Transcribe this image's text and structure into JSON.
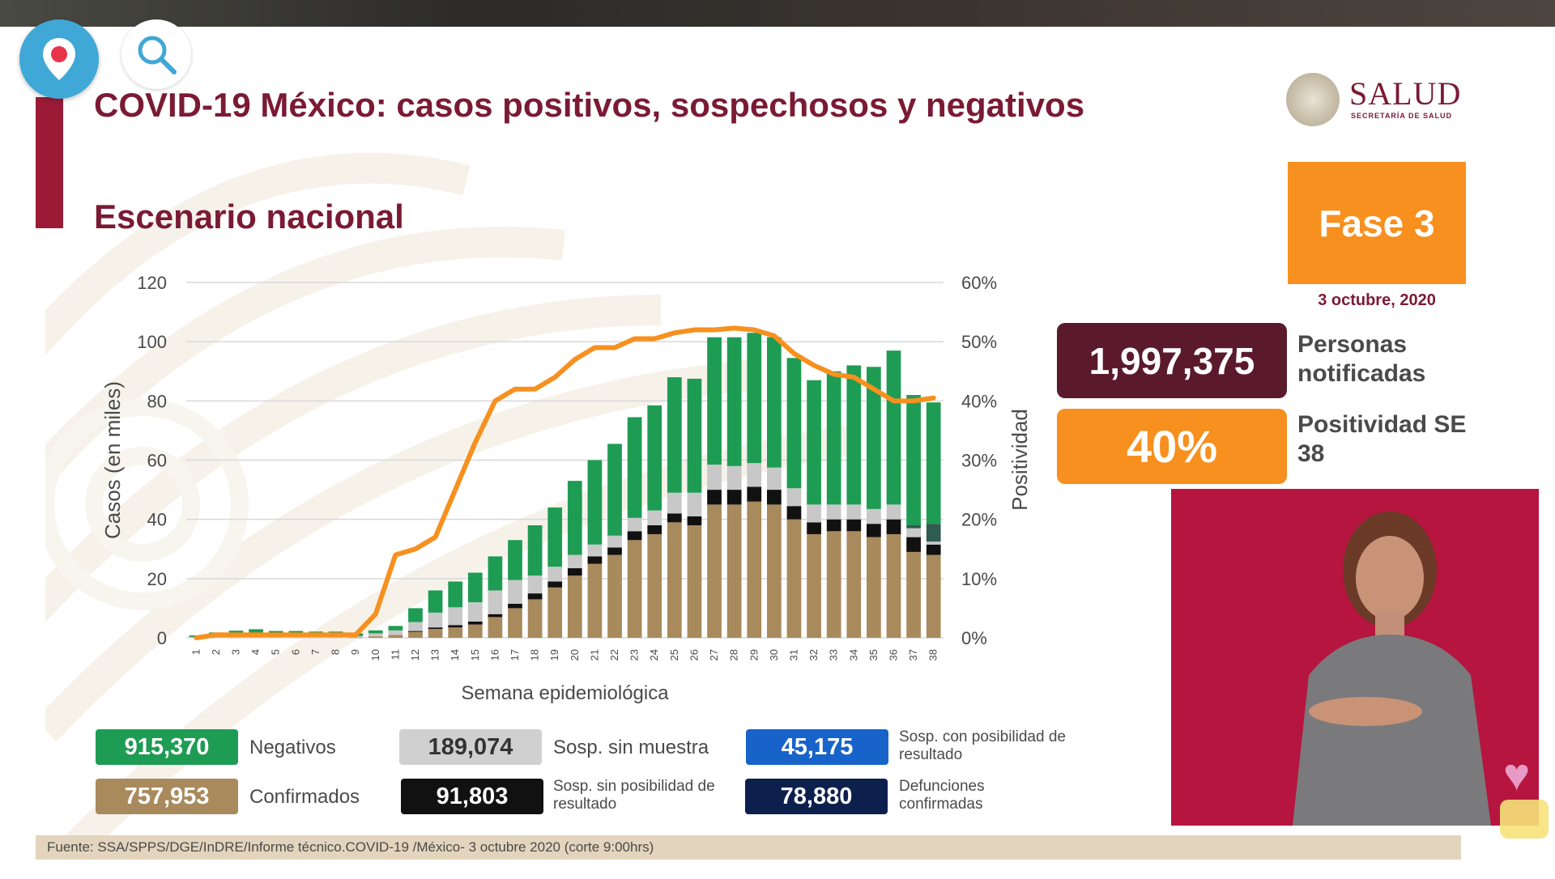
{
  "title": "COVID-19 México: casos positivos, sospechosos y negativos",
  "subtitle": "Escenario nacional",
  "logo": {
    "name": "SALUD",
    "sub": "SECRETARÍA DE SALUD"
  },
  "fase": "Fase 3",
  "fecha": "3 octubre, 2020",
  "personas": {
    "value": "1,997,375",
    "label": "Personas notificadas"
  },
  "positividad": {
    "value": "40%",
    "label": "Positividad SE 38"
  },
  "legend": {
    "negativos": {
      "value": "915,370",
      "label": "Negativos"
    },
    "sin_muestra": {
      "value": "189,074",
      "label": "Sosp. sin muestra"
    },
    "con_posibilidad": {
      "value": "45,175",
      "label": "Sosp. con posibilidad de resultado"
    },
    "confirmados": {
      "value": "757,953",
      "label": "Confirmados"
    },
    "sin_posibilidad": {
      "value": "91,803",
      "label": "Sosp. sin posibilidad de resultado"
    },
    "defunciones": {
      "value": "78,880",
      "label": "Defunciones confirmadas"
    }
  },
  "source": "Fuente: SSA/SPPS/DGE/InDRE/Informe técnico.COVID-19 /México- 3 octubre 2020 (corte 9:00hrs)",
  "colors": {
    "confirmados": "#a88a5c",
    "sin_posibilidad": "#111111",
    "sin_muestra": "#c8c8c8",
    "con_posibilidad": "#2f5b50",
    "negativos": "#1e9c53",
    "positividad": "#f7901e",
    "legend_con_posibilidad": "#1763c9",
    "legend_defunciones": "#0c1f4d"
  },
  "icons": [
    "map-pin-icon",
    "search-icon"
  ],
  "chart_data": {
    "type": "bar",
    "stacked": true,
    "xlabel": "Semana epidemiológica",
    "ylabel": "Casos (en miles)",
    "y2label": "Positividad",
    "ylim": [
      0,
      120
    ],
    "y2lim": [
      0,
      60
    ],
    "yticks": [
      "0",
      "20",
      "40",
      "60",
      "80",
      "100",
      "120"
    ],
    "y2ticks": [
      "0%",
      "10%",
      "20%",
      "30%",
      "40%",
      "50%",
      "60%"
    ],
    "categories": [
      "1",
      "2",
      "3",
      "4",
      "5",
      "6",
      "7",
      "8",
      "9",
      "10",
      "11",
      "12",
      "13",
      "14",
      "15",
      "16",
      "17",
      "18",
      "19",
      "20",
      "21",
      "22",
      "23",
      "24",
      "25",
      "26",
      "27",
      "28",
      "29",
      "30",
      "31",
      "32",
      "33",
      "34",
      "35",
      "36",
      "37",
      "38"
    ],
    "series": [
      {
        "name": "Confirmados",
        "values": [
          0,
          0,
          0,
          0,
          0,
          0,
          0,
          0,
          0.1,
          0.5,
          1,
          2,
          3,
          3.5,
          4.5,
          7,
          10,
          13,
          17,
          21,
          25,
          28,
          33,
          35,
          39,
          38,
          45,
          45,
          46,
          45,
          40,
          35,
          36,
          36,
          34,
          35,
          29,
          28
        ]
      },
      {
        "name": "Sosp. sin posibilidad de resultado",
        "values": [
          0,
          0,
          0,
          0,
          0,
          0,
          0,
          0,
          0,
          0,
          0,
          0.3,
          0.5,
          0.8,
          1,
          1,
          1.5,
          2,
          2,
          2.5,
          2.5,
          2.5,
          3,
          3,
          3,
          3,
          5,
          5,
          5,
          5,
          4.5,
          4,
          4,
          4,
          4.5,
          5,
          5,
          3.5
        ]
      },
      {
        "name": "Sosp. sin muestra",
        "values": [
          0.3,
          0.3,
          0.4,
          0.4,
          0.3,
          0.3,
          0.3,
          0.3,
          0.5,
          1,
          1.5,
          3,
          5,
          6,
          6.5,
          8,
          8,
          6,
          5,
          4.5,
          4,
          4,
          4.5,
          5,
          7,
          8,
          8.5,
          8,
          8,
          7.5,
          6,
          6,
          5,
          5,
          5,
          5,
          3,
          1
        ]
      },
      {
        "name": "Sosp. con posibilidad de resultado",
        "values": [
          0,
          0,
          0,
          0,
          0,
          0,
          0,
          0,
          0,
          0,
          0,
          0,
          0,
          0,
          0,
          0,
          0,
          0,
          0,
          0,
          0,
          0,
          0,
          0,
          0,
          0,
          0,
          0,
          0,
          0,
          0,
          0,
          0,
          0,
          0,
          0,
          1,
          6
        ]
      },
      {
        "name": "Negativos",
        "values": [
          0.5,
          1.5,
          2,
          2.5,
          2,
          2,
          1.8,
          1.8,
          0.9,
          1,
          1.5,
          4.7,
          7.5,
          8.7,
          10,
          11.5,
          13.5,
          17,
          20,
          25,
          28.5,
          31,
          34,
          35.5,
          39,
          38.5,
          43,
          43.5,
          44,
          44,
          44,
          42,
          45,
          47,
          48,
          52,
          44,
          41
        ]
      }
    ],
    "line": {
      "name": "Positividad",
      "values": [
        0,
        0.5,
        0.5,
        0.5,
        0.5,
        0.5,
        0.5,
        0.5,
        0.5,
        4,
        14,
        15,
        17,
        25,
        33,
        40,
        42,
        42,
        44,
        47,
        49,
        49,
        50.5,
        50.5,
        51.5,
        52,
        52,
        52.3,
        52,
        51,
        48,
        46,
        44.5,
        44,
        42,
        40,
        40,
        40.5
      ]
    }
  }
}
